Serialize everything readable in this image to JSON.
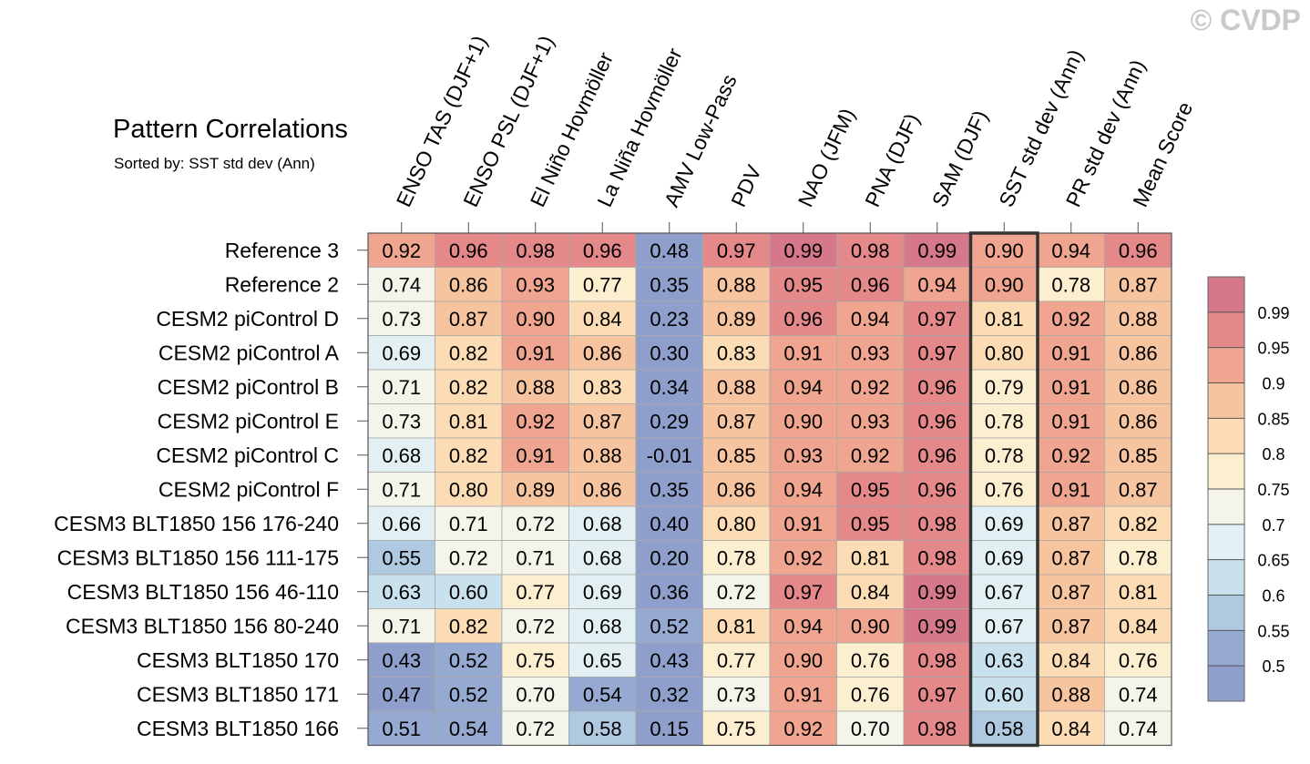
{
  "watermark": "© CVDP",
  "title": "Pattern Correlations",
  "subtitle": "Sorted by: SST std dev (Ann)",
  "chart_data": {
    "type": "heatmap",
    "columns": [
      "ENSO TAS (DJF+1)",
      "ENSO PSL (DJF+1)",
      "El Niño Hovmöller",
      "La Niña Hovmöller",
      "AMV Low-Pass",
      "PDV",
      "NAO (JFM)",
      "PNA (DJF)",
      "SAM (DJF)",
      "SST std dev (Ann)",
      "PR std dev (Ann)",
      "Mean Score"
    ],
    "rows": [
      "Reference 3",
      "Reference 2",
      "CESM2 piControl D",
      "CESM2 piControl A",
      "CESM2 piControl B",
      "CESM2 piControl E",
      "CESM2 piControl C",
      "CESM2 piControl F",
      "CESM3 BLT1850 156 176-240",
      "CESM3 BLT1850 156 111-175",
      "CESM3 BLT1850 156 46-110",
      "CESM3 BLT1850 156 80-240",
      "CESM3 BLT1850 170",
      "CESM3 BLT1850 171",
      "CESM3 BLT1850 166"
    ],
    "values": [
      [
        "0.92",
        "0.96",
        "0.98",
        "0.96",
        "0.48",
        "0.97",
        "0.99",
        "0.98",
        "0.99",
        "0.90",
        "0.94",
        "0.96"
      ],
      [
        "0.74",
        "0.86",
        "0.93",
        "0.77",
        "0.35",
        "0.88",
        "0.95",
        "0.96",
        "0.94",
        "0.90",
        "0.78",
        "0.87"
      ],
      [
        "0.73",
        "0.87",
        "0.90",
        "0.84",
        "0.23",
        "0.89",
        "0.96",
        "0.94",
        "0.97",
        "0.81",
        "0.92",
        "0.88"
      ],
      [
        "0.69",
        "0.82",
        "0.91",
        "0.86",
        "0.30",
        "0.83",
        "0.91",
        "0.93",
        "0.97",
        "0.80",
        "0.91",
        "0.86"
      ],
      [
        "0.71",
        "0.82",
        "0.88",
        "0.83",
        "0.34",
        "0.88",
        "0.94",
        "0.92",
        "0.96",
        "0.79",
        "0.91",
        "0.86"
      ],
      [
        "0.73",
        "0.81",
        "0.92",
        "0.87",
        "0.29",
        "0.87",
        "0.90",
        "0.93",
        "0.96",
        "0.78",
        "0.91",
        "0.86"
      ],
      [
        "0.68",
        "0.82",
        "0.91",
        "0.88",
        "-0.01",
        "0.85",
        "0.93",
        "0.92",
        "0.96",
        "0.78",
        "0.92",
        "0.85"
      ],
      [
        "0.71",
        "0.80",
        "0.89",
        "0.86",
        "0.35",
        "0.86",
        "0.94",
        "0.95",
        "0.96",
        "0.76",
        "0.91",
        "0.87"
      ],
      [
        "0.66",
        "0.71",
        "0.72",
        "0.68",
        "0.40",
        "0.80",
        "0.91",
        "0.95",
        "0.98",
        "0.69",
        "0.87",
        "0.82"
      ],
      [
        "0.55",
        "0.72",
        "0.71",
        "0.68",
        "0.20",
        "0.78",
        "0.92",
        "0.81",
        "0.98",
        "0.69",
        "0.87",
        "0.78"
      ],
      [
        "0.63",
        "0.60",
        "0.77",
        "0.69",
        "0.36",
        "0.72",
        "0.97",
        "0.84",
        "0.99",
        "0.67",
        "0.87",
        "0.81"
      ],
      [
        "0.71",
        "0.82",
        "0.72",
        "0.68",
        "0.52",
        "0.81",
        "0.94",
        "0.90",
        "0.99",
        "0.67",
        "0.87",
        "0.84"
      ],
      [
        "0.43",
        "0.52",
        "0.75",
        "0.65",
        "0.43",
        "0.77",
        "0.90",
        "0.76",
        "0.98",
        "0.63",
        "0.84",
        "0.76"
      ],
      [
        "0.47",
        "0.52",
        "0.70",
        "0.54",
        "0.32",
        "0.73",
        "0.91",
        "0.76",
        "0.97",
        "0.60",
        "0.88",
        "0.74"
      ],
      [
        "0.51",
        "0.54",
        "0.72",
        "0.58",
        "0.15",
        "0.75",
        "0.92",
        "0.70",
        "0.98",
        "0.58",
        "0.84",
        "0.74"
      ]
    ],
    "highlighted_column": "SST std dev (Ann)",
    "colorbar_labels": [
      "0.99",
      "0.95",
      "0.9",
      "0.85",
      "0.8",
      "0.75",
      "0.7",
      "0.65",
      "0.6",
      "0.55",
      "0.5"
    ],
    "colorbar_levels": [
      0.99,
      0.95,
      0.9,
      0.85,
      0.8,
      0.75,
      0.7,
      0.65,
      0.6,
      0.55,
      0.5
    ],
    "colorbar_colors": [
      "#d4788a",
      "#e4888a",
      "#efa58f",
      "#f7c4a0",
      "#fbdcb4",
      "#fcefd0",
      "#f4f4ea",
      "#e2f0f4",
      "#c9e1ec",
      "#afc9e0",
      "#96a9d0",
      "#8f9fcb"
    ],
    "legend_placement": "right"
  }
}
